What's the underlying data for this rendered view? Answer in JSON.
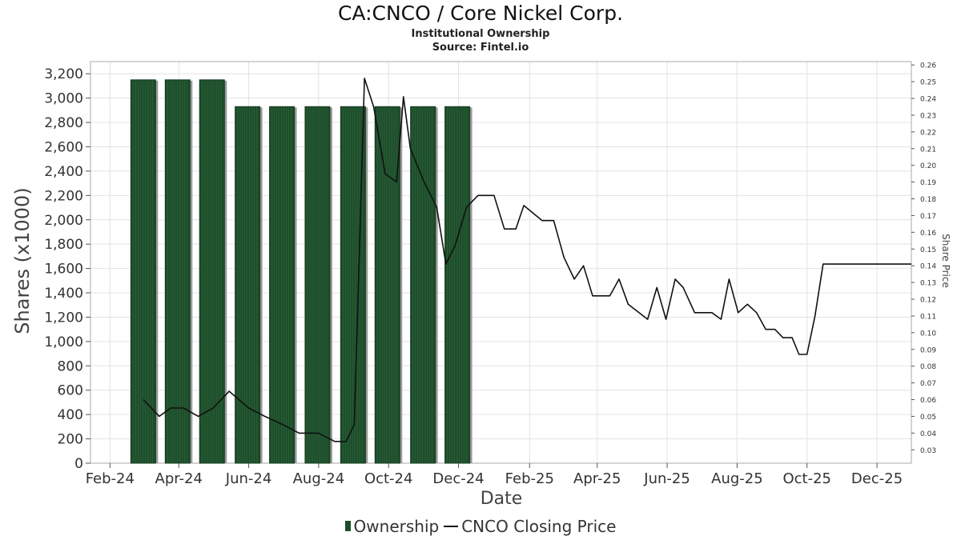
{
  "chart_data": {
    "type": "bar",
    "title": "CA:CNCO / Core Nickel Corp.",
    "subtitle": "Institutional Ownership",
    "source": "Source: Fintel.io",
    "xlabel": "Date",
    "ylabel": "Shares (x1000)",
    "y2label": "Share Price",
    "x_range": [
      "2024-01-15",
      "2025-12-31"
    ],
    "x_ticks": [
      {
        "date": "2024-02-01",
        "label": "Feb-24"
      },
      {
        "date": "2024-04-01",
        "label": "Apr-24"
      },
      {
        "date": "2024-06-01",
        "label": "Jun-24"
      },
      {
        "date": "2024-08-01",
        "label": "Aug-24"
      },
      {
        "date": "2024-10-01",
        "label": "Oct-24"
      },
      {
        "date": "2024-12-01",
        "label": "Dec-24"
      },
      {
        "date": "2025-02-01",
        "label": "Feb-25"
      },
      {
        "date": "2025-04-01",
        "label": "Apr-25"
      },
      {
        "date": "2025-06-01",
        "label": "Jun-25"
      },
      {
        "date": "2025-08-01",
        "label": "Aug-25"
      },
      {
        "date": "2025-10-01",
        "label": "Oct-25"
      },
      {
        "date": "2025-12-01",
        "label": "Dec-25"
      }
    ],
    "ylim": [
      0,
      3300
    ],
    "y_ticks": [
      0,
      200,
      400,
      600,
      800,
      1000,
      1200,
      1400,
      1600,
      1800,
      2000,
      2200,
      2400,
      2600,
      2800,
      3000,
      3200
    ],
    "y_tick_labels": [
      "0",
      "200",
      "400",
      "600",
      "800",
      "1,000",
      "1,200",
      "1,400",
      "1,600",
      "1,800",
      "2,000",
      "2,200",
      "2,400",
      "2,600",
      "2,800",
      "3,000",
      "3,200"
    ],
    "y2lim": [
      0.022,
      0.262
    ],
    "y2_ticks": [
      0.03,
      0.04,
      0.05,
      0.06,
      0.07,
      0.08,
      0.09,
      0.1,
      0.11,
      0.12,
      0.13,
      0.14,
      0.15,
      0.16,
      0.17,
      0.18,
      0.19,
      0.2,
      0.21,
      0.22,
      0.23,
      0.24,
      0.25,
      0.26
    ],
    "y2_tick_labels": [
      "0.03",
      "0.04",
      "0.05",
      "0.06",
      "0.07",
      "0.08",
      "0.09",
      "0.10",
      "0.11",
      "0.12",
      "0.13",
      "0.14",
      "0.15",
      "0.16",
      "0.17",
      "0.18",
      "0.19",
      "0.20",
      "0.21",
      "0.22",
      "0.23",
      "0.24",
      "0.25",
      "0.26"
    ],
    "grid": true,
    "legend_position": "bottom",
    "series": [
      {
        "name": "Ownership",
        "kind": "bar",
        "color": "#1e4d2b",
        "points": [
          {
            "x": "2024-03-01",
            "y": 3150
          },
          {
            "x": "2024-03-31",
            "y": 3150
          },
          {
            "x": "2024-04-30",
            "y": 3150
          },
          {
            "x": "2024-05-31",
            "y": 2930
          },
          {
            "x": "2024-06-30",
            "y": 2930
          },
          {
            "x": "2024-07-31",
            "y": 2930
          },
          {
            "x": "2024-08-31",
            "y": 2930
          },
          {
            "x": "2024-09-30",
            "y": 2930
          },
          {
            "x": "2024-10-31",
            "y": 2930
          },
          {
            "x": "2024-11-30",
            "y": 2930
          }
        ]
      },
      {
        "name": "CNCO Closing Price",
        "kind": "line",
        "axis": "right",
        "color": "#111111",
        "points": [
          {
            "x": "2024-03-01",
            "y": 0.06
          },
          {
            "x": "2024-03-15",
            "y": 0.05
          },
          {
            "x": "2024-03-25",
            "y": 0.055
          },
          {
            "x": "2024-04-05",
            "y": 0.055
          },
          {
            "x": "2024-04-18",
            "y": 0.05
          },
          {
            "x": "2024-05-01",
            "y": 0.055
          },
          {
            "x": "2024-05-15",
            "y": 0.065
          },
          {
            "x": "2024-06-01",
            "y": 0.055
          },
          {
            "x": "2024-06-15",
            "y": 0.05
          },
          {
            "x": "2024-07-01",
            "y": 0.045
          },
          {
            "x": "2024-07-15",
            "y": 0.04
          },
          {
            "x": "2024-08-01",
            "y": 0.04
          },
          {
            "x": "2024-08-15",
            "y": 0.035
          },
          {
            "x": "2024-08-25",
            "y": 0.035
          },
          {
            "x": "2024-09-01",
            "y": 0.045
          },
          {
            "x": "2024-09-05",
            "y": 0.135
          },
          {
            "x": "2024-09-10",
            "y": 0.252
          },
          {
            "x": "2024-09-18",
            "y": 0.235
          },
          {
            "x": "2024-09-28",
            "y": 0.195
          },
          {
            "x": "2024-10-08",
            "y": 0.19
          },
          {
            "x": "2024-10-14",
            "y": 0.241
          },
          {
            "x": "2024-10-20",
            "y": 0.21
          },
          {
            "x": "2024-11-01",
            "y": 0.19
          },
          {
            "x": "2024-11-12",
            "y": 0.175
          },
          {
            "x": "2024-11-20",
            "y": 0.141
          },
          {
            "x": "2024-11-28",
            "y": 0.152
          },
          {
            "x": "2024-12-08",
            "y": 0.175
          },
          {
            "x": "2024-12-18",
            "y": 0.182
          },
          {
            "x": "2025-01-01",
            "y": 0.182
          },
          {
            "x": "2025-01-10",
            "y": 0.162
          },
          {
            "x": "2025-01-20",
            "y": 0.162
          },
          {
            "x": "2025-01-27",
            "y": 0.176
          },
          {
            "x": "2025-02-12",
            "y": 0.167
          },
          {
            "x": "2025-02-22",
            "y": 0.167
          },
          {
            "x": "2025-03-03",
            "y": 0.145
          },
          {
            "x": "2025-03-12",
            "y": 0.132
          },
          {
            "x": "2025-03-20",
            "y": 0.14
          },
          {
            "x": "2025-03-28",
            "y": 0.122
          },
          {
            "x": "2025-04-12",
            "y": 0.122
          },
          {
            "x": "2025-04-20",
            "y": 0.132
          },
          {
            "x": "2025-04-28",
            "y": 0.117
          },
          {
            "x": "2025-05-15",
            "y": 0.108
          },
          {
            "x": "2025-05-23",
            "y": 0.127
          },
          {
            "x": "2025-05-31",
            "y": 0.108
          },
          {
            "x": "2025-06-08",
            "y": 0.132
          },
          {
            "x": "2025-06-15",
            "y": 0.127
          },
          {
            "x": "2025-06-25",
            "y": 0.112
          },
          {
            "x": "2025-07-10",
            "y": 0.112
          },
          {
            "x": "2025-07-18",
            "y": 0.108
          },
          {
            "x": "2025-07-25",
            "y": 0.132
          },
          {
            "x": "2025-08-02",
            "y": 0.112
          },
          {
            "x": "2025-08-10",
            "y": 0.117
          },
          {
            "x": "2025-08-18",
            "y": 0.112
          },
          {
            "x": "2025-08-26",
            "y": 0.102
          },
          {
            "x": "2025-09-03",
            "y": 0.102
          },
          {
            "x": "2025-09-10",
            "y": 0.097
          },
          {
            "x": "2025-09-18",
            "y": 0.097
          },
          {
            "x": "2025-09-24",
            "y": 0.087
          },
          {
            "x": "2025-10-01",
            "y": 0.087
          },
          {
            "x": "2025-10-08",
            "y": 0.11
          },
          {
            "x": "2025-10-15",
            "y": 0.141
          },
          {
            "x": "2025-12-31",
            "y": 0.141
          }
        ]
      }
    ]
  }
}
